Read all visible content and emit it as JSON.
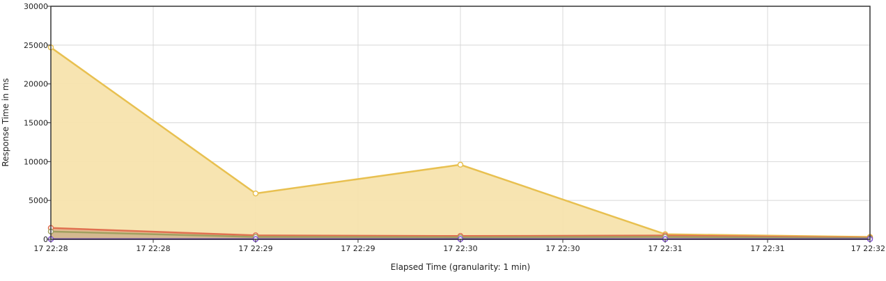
{
  "chart_data": {
    "type": "area",
    "xlabel": "Elapsed Time (granularity: 1 min)",
    "ylabel": "Response Time in ms",
    "ylim": [
      0,
      30000
    ],
    "y_ticks": [
      0,
      5000,
      10000,
      15000,
      20000,
      25000,
      30000
    ],
    "x_tick_labels": [
      "17 22:28",
      "17 22:28",
      "17 22:29",
      "17 22:29",
      "17 22:30",
      "17 22:30",
      "17 22:31",
      "17 22:31",
      "17 22:32"
    ],
    "x": [
      "17 22:28",
      "17 22:29",
      "17 22:30",
      "17 22:31",
      "17 22:32"
    ],
    "grid": true,
    "series": [
      {
        "color": "#e8c050",
        "fill": "#f7e3ad",
        "values": [
          24700,
          5900,
          9600,
          650,
          300
        ]
      },
      {
        "color": "#e07050",
        "fill": "#d9a07a",
        "values": [
          1450,
          500,
          420,
          480,
          200
        ]
      },
      {
        "color": "#a0a060",
        "fill": "#c8b890",
        "values": [
          1000,
          300,
          250,
          300,
          150
        ]
      },
      {
        "color": "#8050d0",
        "fill": "#b090e0",
        "values": [
          20,
          20,
          20,
          20,
          20
        ]
      }
    ]
  }
}
